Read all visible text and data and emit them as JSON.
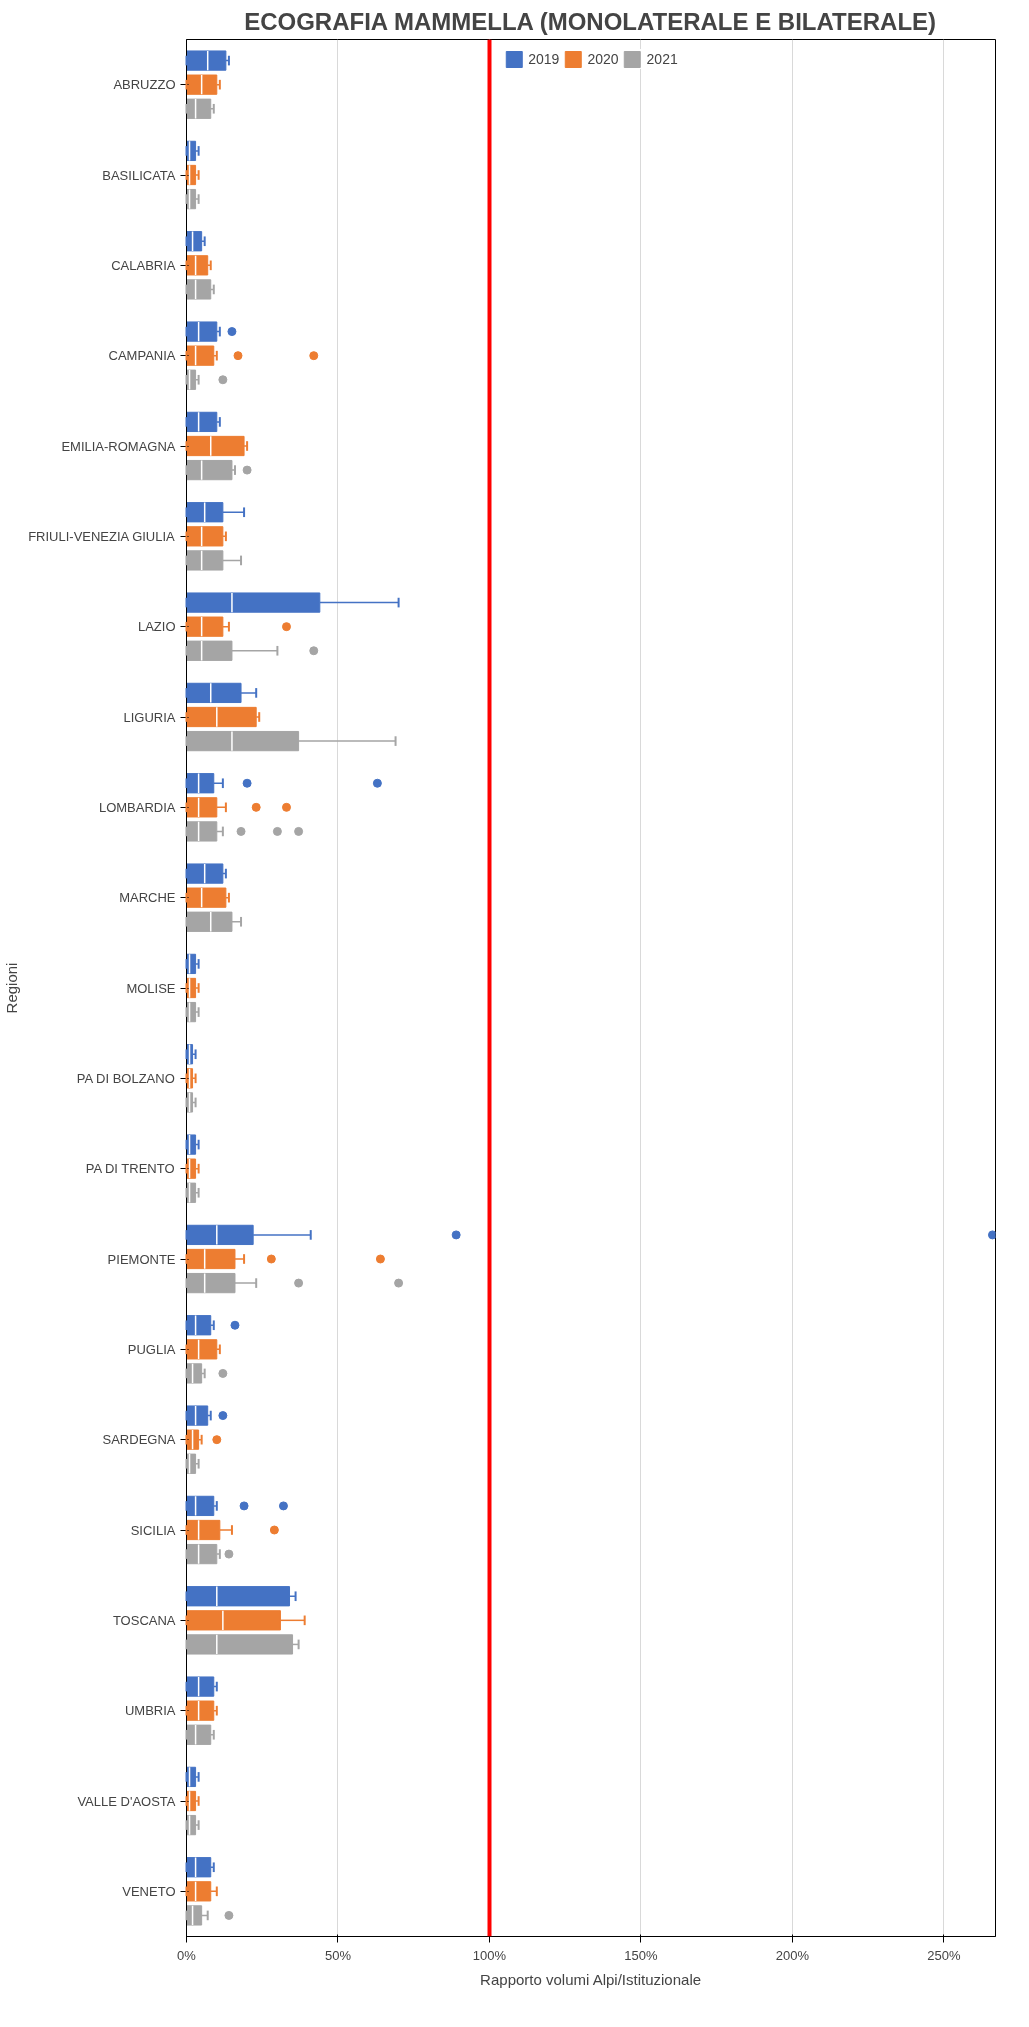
{
  "chart_data": {
    "type": "box",
    "title": "ECOGRAFIA MAMMELLA (MONOLATERALE E BILATERALE)",
    "xlabel": "Rapporto volumi Alpi/Istituzionale",
    "ylabel": "Regioni",
    "orientation": "horizontal",
    "categories": [
      "ABRUZZO",
      "BASILICATA",
      "CALABRIA",
      "CAMPANIA",
      "EMILIA-ROMAGNA",
      "FRIULI-VENEZIA GIULIA",
      "LAZIO",
      "LIGURIA",
      "LOMBARDIA",
      "MARCHE",
      "MOLISE",
      "PA DI BOLZANO",
      "PA DI TRENTO",
      "PIEMONTE",
      "PUGLIA",
      "SARDEGNA",
      "SICILIA",
      "TOSCANA",
      "UMBRIA",
      "VALLE D'AOSTA",
      "VENETO"
    ],
    "xlim": [
      0,
      267
    ],
    "xticks": [
      {
        "value": 0,
        "label": "0%"
      },
      {
        "value": 50,
        "label": "50%"
      },
      {
        "value": 100,
        "label": "100%"
      },
      {
        "value": 150,
        "label": "150%"
      },
      {
        "value": 200,
        "label": "200%"
      },
      {
        "value": 250,
        "label": "250%"
      }
    ],
    "grid": "x",
    "legend": "top",
    "ref_lines": [
      {
        "axis": "x",
        "value": 100,
        "color": "#ff0000"
      }
    ],
    "series": [
      {
        "name": "2019",
        "color": "#4472c4",
        "boxes": [
          {
            "low": 0,
            "q1": 0,
            "median": 7,
            "q3": 13,
            "high": 14
          },
          {
            "low": 0,
            "q1": 0,
            "median": 1,
            "q3": 3,
            "high": 4
          },
          {
            "low": 0,
            "q1": 0,
            "median": 2,
            "q3": 5,
            "high": 6
          },
          {
            "low": 0,
            "q1": 0,
            "median": 4,
            "q3": 10,
            "high": 11,
            "outliers": [
              15
            ]
          },
          {
            "low": 0,
            "q1": 0,
            "median": 4,
            "q3": 10,
            "high": 11
          },
          {
            "low": 0,
            "q1": 0,
            "median": 6,
            "q3": 12,
            "high": 19
          },
          {
            "low": 0,
            "q1": 0,
            "median": 15,
            "q3": 44,
            "high": 70
          },
          {
            "low": 0,
            "q1": 0,
            "median": 8,
            "q3": 18,
            "high": 23
          },
          {
            "low": 0,
            "q1": 0,
            "median": 4,
            "q3": 9,
            "high": 12,
            "outliers": [
              20,
              63
            ]
          },
          {
            "low": 0,
            "q1": 0,
            "median": 6,
            "q3": 12,
            "high": 13
          },
          {
            "low": 0,
            "q1": 0,
            "median": 1,
            "q3": 3,
            "high": 4
          },
          {
            "low": 0,
            "q1": 0,
            "median": 1,
            "q3": 2,
            "high": 3
          },
          {
            "low": 0,
            "q1": 0,
            "median": 1,
            "q3": 3,
            "high": 4
          },
          {
            "low": 0,
            "q1": 0,
            "median": 10,
            "q3": 22,
            "high": 41,
            "outliers": [
              89,
              266
            ]
          },
          {
            "low": 0,
            "q1": 0,
            "median": 3,
            "q3": 8,
            "high": 9,
            "outliers": [
              16
            ]
          },
          {
            "low": 0,
            "q1": 0,
            "median": 3,
            "q3": 7,
            "high": 8,
            "outliers": [
              12
            ]
          },
          {
            "low": 0,
            "q1": 0,
            "median": 3,
            "q3": 9,
            "high": 10,
            "outliers": [
              19,
              32
            ]
          },
          {
            "low": 0,
            "q1": 0,
            "median": 10,
            "q3": 34,
            "high": 36
          },
          {
            "low": 0,
            "q1": 0,
            "median": 4,
            "q3": 9,
            "high": 10
          },
          {
            "low": 0,
            "q1": 0,
            "median": 1,
            "q3": 3,
            "high": 4
          },
          {
            "low": 0,
            "q1": 0,
            "median": 3,
            "q3": 8,
            "high": 9
          }
        ]
      },
      {
        "name": "2020",
        "color": "#ed7d31",
        "boxes": [
          {
            "low": 0,
            "q1": 0,
            "median": 5,
            "q3": 10,
            "high": 11
          },
          {
            "low": 0,
            "q1": 0,
            "median": 1,
            "q3": 3,
            "high": 4
          },
          {
            "low": 0,
            "q1": 0,
            "median": 3,
            "q3": 7,
            "high": 8
          },
          {
            "low": 0,
            "q1": 0,
            "median": 3,
            "q3": 9,
            "high": 10,
            "outliers": [
              17,
              42
            ]
          },
          {
            "low": 0,
            "q1": 0,
            "median": 8,
            "q3": 19,
            "high": 20
          },
          {
            "low": 0,
            "q1": 0,
            "median": 5,
            "q3": 12,
            "high": 13
          },
          {
            "low": 0,
            "q1": 0,
            "median": 5,
            "q3": 12,
            "high": 14,
            "outliers": [
              33
            ]
          },
          {
            "low": 0,
            "q1": 0,
            "median": 10,
            "q3": 23,
            "high": 24
          },
          {
            "low": 0,
            "q1": 0,
            "median": 4,
            "q3": 10,
            "high": 13,
            "outliers": [
              23,
              33
            ]
          },
          {
            "low": 0,
            "q1": 0,
            "median": 5,
            "q3": 13,
            "high": 14
          },
          {
            "low": 0,
            "q1": 0,
            "median": 1,
            "q3": 3,
            "high": 4
          },
          {
            "low": 0,
            "q1": 0,
            "median": 1,
            "q3": 2,
            "high": 3
          },
          {
            "low": 0,
            "q1": 0,
            "median": 1,
            "q3": 3,
            "high": 4
          },
          {
            "low": 0,
            "q1": 0,
            "median": 6,
            "q3": 16,
            "high": 19,
            "outliers": [
              28,
              64
            ]
          },
          {
            "low": 0,
            "q1": 0,
            "median": 4,
            "q3": 10,
            "high": 11
          },
          {
            "low": 0,
            "q1": 0,
            "median": 2,
            "q3": 4,
            "high": 5,
            "outliers": [
              10
            ]
          },
          {
            "low": 0,
            "q1": 0,
            "median": 4,
            "q3": 11,
            "high": 15,
            "outliers": [
              29
            ]
          },
          {
            "low": 0,
            "q1": 0,
            "median": 12,
            "q3": 31,
            "high": 39
          },
          {
            "low": 0,
            "q1": 0,
            "median": 4,
            "q3": 9,
            "high": 10
          },
          {
            "low": 0,
            "q1": 0,
            "median": 1,
            "q3": 3,
            "high": 4
          },
          {
            "low": 0,
            "q1": 0,
            "median": 3,
            "q3": 8,
            "high": 10
          }
        ]
      },
      {
        "name": "2021",
        "color": "#a5a5a5",
        "boxes": [
          {
            "low": 0,
            "q1": 0,
            "median": 3,
            "q3": 8,
            "high": 9
          },
          {
            "low": 0,
            "q1": 0,
            "median": 1,
            "q3": 3,
            "high": 4
          },
          {
            "low": 0,
            "q1": 0,
            "median": 3,
            "q3": 8,
            "high": 9
          },
          {
            "low": 0,
            "q1": 0,
            "median": 1,
            "q3": 3,
            "high": 4,
            "outliers": [
              12
            ]
          },
          {
            "low": 0,
            "q1": 0,
            "median": 5,
            "q3": 15,
            "high": 16,
            "outliers": [
              20
            ]
          },
          {
            "low": 0,
            "q1": 0,
            "median": 5,
            "q3": 12,
            "high": 18
          },
          {
            "low": 0,
            "q1": 0,
            "median": 5,
            "q3": 15,
            "high": 30,
            "outliers": [
              42
            ]
          },
          {
            "low": 0,
            "q1": 0,
            "median": 15,
            "q3": 37,
            "high": 69
          },
          {
            "low": 0,
            "q1": 0,
            "median": 4,
            "q3": 10,
            "high": 12,
            "outliers": [
              18,
              30,
              37
            ]
          },
          {
            "low": 0,
            "q1": 0,
            "median": 8,
            "q3": 15,
            "high": 18
          },
          {
            "low": 0,
            "q1": 0,
            "median": 1,
            "q3": 3,
            "high": 4
          },
          {
            "low": 0,
            "q1": 0,
            "median": 1,
            "q3": 2,
            "high": 3
          },
          {
            "low": 0,
            "q1": 0,
            "median": 1,
            "q3": 3,
            "high": 4
          },
          {
            "low": 0,
            "q1": 0,
            "median": 6,
            "q3": 16,
            "high": 23,
            "outliers": [
              37,
              70
            ]
          },
          {
            "low": 0,
            "q1": 0,
            "median": 2,
            "q3": 5,
            "high": 6,
            "outliers": [
              12
            ]
          },
          {
            "low": 0,
            "q1": 0,
            "median": 1,
            "q3": 3,
            "high": 4
          },
          {
            "low": 0,
            "q1": 0,
            "median": 4,
            "q3": 10,
            "high": 11,
            "outliers": [
              14
            ]
          },
          {
            "low": 0,
            "q1": 0,
            "median": 10,
            "q3": 35,
            "high": 37
          },
          {
            "low": 0,
            "q1": 0,
            "median": 3,
            "q3": 8,
            "high": 9
          },
          {
            "low": 0,
            "q1": 0,
            "median": 1,
            "q3": 3,
            "high": 4
          },
          {
            "low": 0,
            "q1": 0,
            "median": 2,
            "q3": 5,
            "high": 7,
            "outliers": [
              14
            ]
          }
        ]
      }
    ]
  }
}
